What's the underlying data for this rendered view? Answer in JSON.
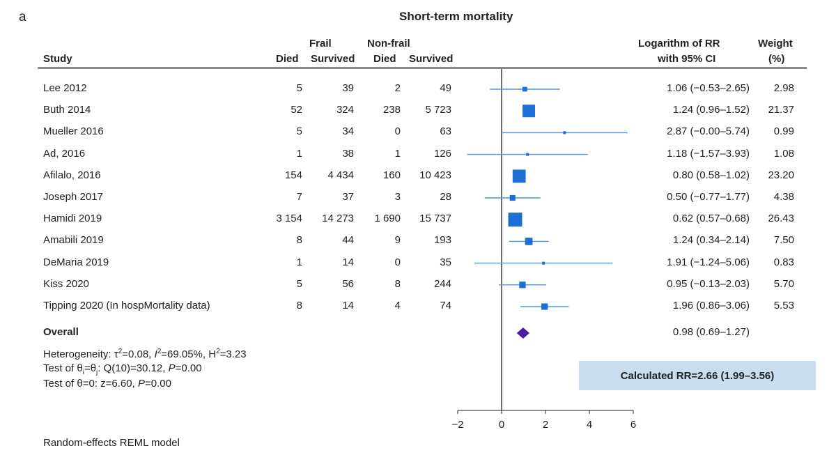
{
  "panel_letter": "a",
  "colors": {
    "marker": "#1d6fd6",
    "line": "#4d94e8",
    "diamond": "#4b1ea0",
    "box": "#c8ddf0"
  },
  "headers": {
    "study": "Study",
    "frail_group": "Frail",
    "nonfrail_group": "Non-frail",
    "died": "Died",
    "survived": "Survived",
    "estimate_line1": "Logarithm of RR",
    "estimate_line2": "with 95% CI",
    "weight_line1": "Weight",
    "weight_line2": "(%)"
  },
  "overall": {
    "label": "Overall",
    "ci_text": "0.98 (0.69–1.27)"
  },
  "heterogeneity": {
    "line1_prefix": "Heterogeneity: τ",
    "line1_tau_exp": "2",
    "line1_mid": "=0.08, ",
    "line1_i": "I",
    "line1_i_exp": "2",
    "line1_rest": "=69.05%, H",
    "line1_h_exp": "2",
    "line1_end": "=3.23",
    "line2_prefix": "Test of θ",
    "line2_sub_i": "i",
    "line2_eq": "=θ",
    "line2_sub_j": "j",
    "line2_stat": ": Q(10)=30.12, ",
    "line2_p": "P",
    "line2_end": "=0.00",
    "line3_prefix": "Test of θ=0: z=6.60, ",
    "line3_p": "P",
    "line3_end": "=0.00"
  },
  "calculated_rr": "Calculated RR=2.66 (1.99–3.56)",
  "footnote": "Random-effects REML model",
  "chart_data": {
    "type": "forest",
    "title": "Short-term mortality",
    "xlabel": "",
    "xlim": [
      -2,
      6
    ],
    "x_ticks": [
      "−2",
      "0",
      "2",
      "4",
      "6"
    ],
    "x_tick_values": [
      -2,
      0,
      2,
      4,
      6
    ],
    "reference_line": 0,
    "studies": [
      {
        "name": "Lee 2012",
        "frail_died": "5",
        "frail_survived": "39",
        "nonfrail_died": "2",
        "nonfrail_survived": "49",
        "estimate": 1.06,
        "lower": -0.53,
        "upper": 2.65,
        "ci_text": "1.06 (−0.53–2.65)",
        "weight": 2.98,
        "weight_text": "2.98"
      },
      {
        "name": "Buth 2014",
        "frail_died": "52",
        "frail_survived": "324",
        "nonfrail_died": "238",
        "nonfrail_survived": "5 723",
        "estimate": 1.24,
        "lower": 0.96,
        "upper": 1.52,
        "ci_text": "1.24 (0.96–1.52)",
        "weight": 21.37,
        "weight_text": "21.37"
      },
      {
        "name": "Mueller 2016",
        "frail_died": "5",
        "frail_survived": "34",
        "nonfrail_died": "0",
        "nonfrail_survived": "63",
        "estimate": 2.87,
        "lower": 0.0,
        "upper": 5.74,
        "ci_text": "2.87 (−0.00–5.74)",
        "weight": 0.99,
        "weight_text": "0.99"
      },
      {
        "name": "Ad, 2016",
        "frail_died": "1",
        "frail_survived": "38",
        "nonfrail_died": "1",
        "nonfrail_survived": "126",
        "estimate": 1.18,
        "lower": -1.57,
        "upper": 3.93,
        "ci_text": "1.18 (−1.57–3.93)",
        "weight": 1.08,
        "weight_text": "1.08"
      },
      {
        "name": "Afilalo, 2016",
        "frail_died": "154",
        "frail_survived": "4 434",
        "nonfrail_died": "160",
        "nonfrail_survived": "10 423",
        "estimate": 0.8,
        "lower": 0.58,
        "upper": 1.02,
        "ci_text": "0.80 (0.58–1.02)",
        "weight": 23.2,
        "weight_text": "23.20"
      },
      {
        "name": "Joseph 2017",
        "frail_died": "7",
        "frail_survived": "37",
        "nonfrail_died": "3",
        "nonfrail_survived": "28",
        "estimate": 0.5,
        "lower": -0.77,
        "upper": 1.77,
        "ci_text": "0.50 (−0.77–1.77)",
        "weight": 4.38,
        "weight_text": "4.38"
      },
      {
        "name": "Hamidi 2019",
        "frail_died": "3 154",
        "frail_survived": "14 273",
        "nonfrail_died": "1 690",
        "nonfrail_survived": "15 737",
        "estimate": 0.62,
        "lower": 0.57,
        "upper": 0.68,
        "ci_text": "0.62 (0.57–0.68)",
        "weight": 26.43,
        "weight_text": "26.43"
      },
      {
        "name": "Amabili 2019",
        "frail_died": "8",
        "frail_survived": "44",
        "nonfrail_died": "9",
        "nonfrail_survived": "193",
        "estimate": 1.24,
        "lower": 0.34,
        "upper": 2.14,
        "ci_text": "1.24 (0.34–2.14)",
        "weight": 7.5,
        "weight_text": "7.50"
      },
      {
        "name": "DeMaria 2019",
        "frail_died": "1",
        "frail_survived": "14",
        "nonfrail_died": "0",
        "nonfrail_survived": "35",
        "estimate": 1.91,
        "lower": -1.24,
        "upper": 5.06,
        "ci_text": "1.91 (−1.24–5.06)",
        "weight": 0.83,
        "weight_text": "0.83"
      },
      {
        "name": "Kiss 2020",
        "frail_died": "5",
        "frail_survived": "56",
        "nonfrail_died": "8",
        "nonfrail_survived": "244",
        "estimate": 0.95,
        "lower": -0.13,
        "upper": 2.03,
        "ci_text": "0.95 (−0.13–2.03)",
        "weight": 5.7,
        "weight_text": "5.70"
      },
      {
        "name": "Tipping 2020 (In hospMortality data)",
        "frail_died": "8",
        "frail_survived": "14",
        "nonfrail_died": "4",
        "nonfrail_survived": "74",
        "estimate": 1.96,
        "lower": 0.86,
        "upper": 3.06,
        "ci_text": "1.96 (0.86–3.06)",
        "weight": 5.53,
        "weight_text": "5.53"
      }
    ],
    "overall": {
      "estimate": 0.98,
      "lower": 0.69,
      "upper": 1.27
    }
  }
}
